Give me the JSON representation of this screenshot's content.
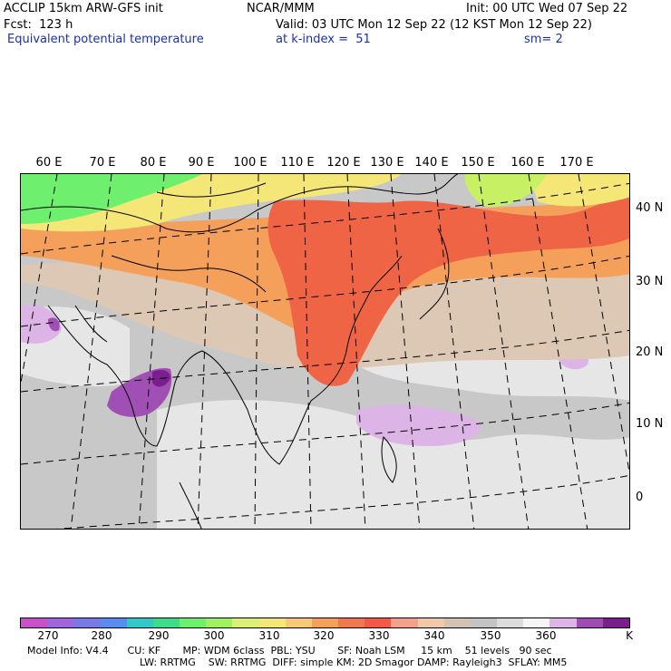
{
  "header": {
    "line1_left": "ACCLIP 15km ARW-GFS init",
    "line1_center": "NCAR/MMM",
    "line1_right": "Init: 00 UTC Wed 07 Sep 22",
    "line2_left": "Fcst:  123 h",
    "line2_right": "Valid: 03 UTC Mon 12 Sep 22 (12 KST Mon 12 Sep 22)",
    "line3_left": "Equivalent potential temperature",
    "line3_center": "at k-index =  51",
    "line3_right": "sm= 2"
  },
  "map": {
    "lon_labels": [
      "60 E",
      "70 E",
      "80 E",
      "90 E",
      "100 E",
      "110 E",
      "120 E",
      "130 E",
      "140 E",
      "150 E",
      "160 E",
      "170 E"
    ],
    "lat_labels": [
      "40 N",
      "30 N",
      "20 N",
      "10 N",
      "0"
    ],
    "colors": {
      "green": "#6ef06e",
      "yellow_green": "#c8f064",
      "yellow": "#f5e678",
      "orange": "#f5a05a",
      "red_orange": "#f06446",
      "salmon": "#f5b496",
      "tan": "#dcc8b4",
      "gray": "#c8c8c8",
      "light_gray": "#e6e6e6",
      "lavender": "#dcb4e6",
      "purple": "#a050b4",
      "dark_purple": "#7a1e8c"
    }
  },
  "colorbar": {
    "labels": [
      "270",
      "280",
      "290",
      "300",
      "310",
      "320",
      "330",
      "340",
      "350",
      "360"
    ],
    "unit": "K",
    "colors": [
      "#c850c8",
      "#a064dc",
      "#7878e6",
      "#5a8cf0",
      "#32c8c8",
      "#3cdc8c",
      "#6ef06e",
      "#a0f064",
      "#dcf078",
      "#f5e678",
      "#f5c87a",
      "#f5a05a",
      "#f07850",
      "#f05a46",
      "#f5a08c",
      "#f0c8aa",
      "#d2c3b4",
      "#c3c3c3",
      "#dcdcdc",
      "#f5f5f5",
      "#dcb4e6",
      "#a04ab4",
      "#7a1e8c"
    ]
  },
  "footer": {
    "line1": "Model Info: V4.4      CU: KF       MP: WDM 6class  PBL: YSU       SF: Noah LSM     15 km    51 levels   90 sec",
    "line2": "LW: RRTMG    SW: RRTMG  DIFF: simple KM: 2D Smagor DAMP: Rayleigh3  SFLAY: MM5"
  }
}
